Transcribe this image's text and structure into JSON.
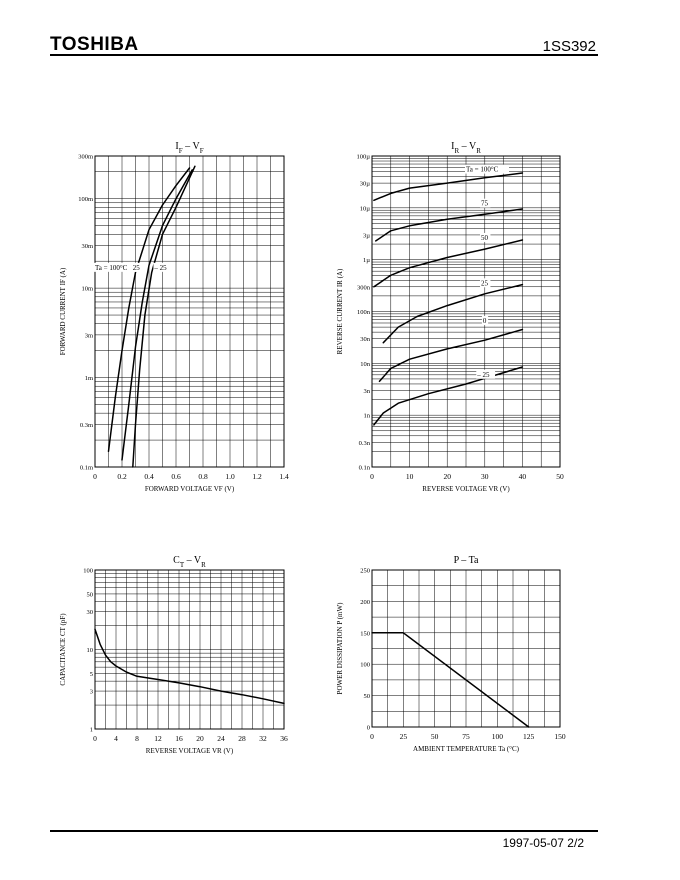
{
  "header": {
    "brand": "TOSHIBA",
    "part": "1SS392"
  },
  "footer": {
    "date_page": "1997-05-07   2/2"
  },
  "chart_data": [
    {
      "id": "if-vf",
      "type": "line",
      "title": "IF – VF",
      "title_main": "I",
      "title_sub1": "F",
      "title_mid": " – V",
      "title_sub2": "F",
      "xlabel": "FORWARD VOLTAGE   VF   (V)",
      "ylabel": "FORWARD CURRENT   IF   (A)",
      "x_scale": "linear",
      "y_scale": "log",
      "xlim": [
        0,
        1.4
      ],
      "ylim": [
        0.0001,
        0.3
      ],
      "x_ticks": [
        0,
        0.2,
        0.4,
        0.6,
        0.8,
        1.0,
        1.2,
        1.4
      ],
      "x_tick_labels": [
        "0",
        "0.2",
        "0.4",
        "0.6",
        "0.8",
        "1.0",
        "1.2",
        "1.4"
      ],
      "y_ticks": [
        0.0001,
        0.0003,
        0.001,
        0.003,
        0.01,
        0.03,
        0.1,
        0.3
      ],
      "y_tick_labels": [
        "0.1m",
        "0.3m",
        "1m",
        "3m",
        "10m",
        "30m",
        "100m",
        "300m"
      ],
      "grid": true,
      "annotations": [
        {
          "text": "Ta = 100°C",
          "x": 0.0,
          "y": 0.016
        },
        {
          "text": "25",
          "x": 0.28,
          "y": 0.016
        },
        {
          "text": "– 25",
          "x": 0.44,
          "y": 0.016
        }
      ],
      "series": [
        {
          "label": "100°C",
          "x": [
            0.1,
            0.15,
            0.2,
            0.25,
            0.3,
            0.4,
            0.5,
            0.6,
            0.7
          ],
          "y": [
            0.00015,
            0.0006,
            0.002,
            0.006,
            0.015,
            0.045,
            0.085,
            0.14,
            0.22
          ]
        },
        {
          "label": "25",
          "x": [
            0.2,
            0.25,
            0.3,
            0.35,
            0.4,
            0.5,
            0.6,
            0.72
          ],
          "y": [
            0.00012,
            0.0005,
            0.0022,
            0.007,
            0.018,
            0.05,
            0.1,
            0.21
          ]
        },
        {
          "label": "-25",
          "x": [
            0.28,
            0.3,
            0.33,
            0.37,
            0.42,
            0.5,
            0.6,
            0.74
          ],
          "y": [
            0.0001,
            0.0003,
            0.0012,
            0.005,
            0.015,
            0.04,
            0.08,
            0.23
          ]
        }
      ]
    },
    {
      "id": "ir-vr",
      "type": "line",
      "title": "IR – VR",
      "title_main": "I",
      "title_sub1": "R",
      "title_mid": " – V",
      "title_sub2": "R",
      "xlabel": "REVERSE VOLTAGE   VR   (V)",
      "ylabel": "REVERSE CURRENT   IR   (A)",
      "x_scale": "linear",
      "y_scale": "log",
      "xlim": [
        0,
        50
      ],
      "ylim": [
        1e-10,
        0.0001
      ],
      "x_ticks": [
        0,
        10,
        20,
        30,
        40,
        50
      ],
      "x_tick_labels": [
        "0",
        "10",
        "20",
        "30",
        "40",
        "50"
      ],
      "y_ticks": [
        1e-10,
        3e-10,
        1e-09,
        3e-09,
        1e-08,
        3e-08,
        1e-07,
        3e-07,
        1e-06,
        3e-06,
        1e-05,
        3e-05,
        0.0001
      ],
      "y_tick_labels": [
        "0.1n",
        "0.3n",
        "1n",
        "3n",
        "10n",
        "30n",
        "100n",
        "300n",
        "1µ",
        "3µ",
        "10µ",
        "30µ",
        "100µ"
      ],
      "grid": true,
      "annotations": [
        {
          "text": "Ta = 100°C",
          "x": 25,
          "y": 5e-05
        },
        {
          "text": "75",
          "x": 29,
          "y": 1.1e-05
        },
        {
          "text": "50",
          "x": 29,
          "y": 2.4e-06
        },
        {
          "text": "25",
          "x": 29,
          "y": 3.2e-07
        },
        {
          "text": "0",
          "x": 29.5,
          "y": 6e-08
        },
        {
          "text": "– 25",
          "x": 28,
          "y": 5.5e-09
        }
      ],
      "series": [
        {
          "label": "100°C",
          "x": [
            0.5,
            5,
            10,
            20,
            30,
            40
          ],
          "y": [
            1.4e-05,
            1.9e-05,
            2.4e-05,
            3e-05,
            3.8e-05,
            4.7e-05
          ]
        },
        {
          "label": "75",
          "x": [
            1,
            5,
            10,
            20,
            30,
            40
          ],
          "y": [
            2.3e-06,
            3.6e-06,
            4.5e-06,
            6e-06,
            7.5e-06,
            9.5e-06
          ]
        },
        {
          "label": "50",
          "x": [
            0.5,
            5,
            10,
            20,
            30,
            40
          ],
          "y": [
            3e-07,
            5e-07,
            7e-07,
            1.1e-06,
            1.6e-06,
            2.4e-06
          ]
        },
        {
          "label": "25",
          "x": [
            3,
            7,
            12,
            20,
            30,
            40
          ],
          "y": [
            2.5e-08,
            5e-08,
            8e-08,
            1.3e-07,
            2.2e-07,
            3.3e-07
          ]
        },
        {
          "label": "0",
          "x": [
            2,
            5,
            10,
            20,
            30,
            40
          ],
          "y": [
            4.5e-09,
            8e-09,
            1.2e-08,
            1.9e-08,
            2.8e-08,
            4.5e-08
          ]
        },
        {
          "label": "-25",
          "x": [
            0.5,
            3,
            7,
            15,
            25,
            40
          ],
          "y": [
            6.5e-10,
            1.1e-09,
            1.7e-09,
            2.6e-09,
            4e-09,
            8.5e-09
          ]
        }
      ]
    },
    {
      "id": "ct-vr",
      "type": "line",
      "title": "CT – VR",
      "title_main": "C",
      "title_sub1": "T",
      "title_mid": " – V",
      "title_sub2": "R",
      "xlabel": "REVERSE VOLTAGE   VR   (V)",
      "ylabel": "CAPACITANCE   CT   (pF)",
      "x_scale": "linear",
      "y_scale": "log",
      "xlim": [
        0,
        36
      ],
      "ylim": [
        1,
        100
      ],
      "x_ticks": [
        0,
        4,
        8,
        12,
        16,
        20,
        24,
        28,
        32,
        36
      ],
      "x_tick_labels": [
        "0",
        "4",
        "8",
        "12",
        "16",
        "20",
        "24",
        "28",
        "32",
        "36"
      ],
      "y_ticks": [
        1,
        3,
        5,
        10,
        30,
        50,
        100
      ],
      "y_tick_labels": [
        "1",
        "3",
        "5",
        "10",
        "30",
        "50",
        "100"
      ],
      "grid": true,
      "series": [
        {
          "label": "CT",
          "x": [
            0,
            1,
            2,
            3,
            4,
            6,
            8,
            12,
            16,
            20,
            24,
            28,
            32,
            36
          ],
          "y": [
            18,
            11.5,
            8.5,
            7,
            6.2,
            5.2,
            4.6,
            4.2,
            3.8,
            3.4,
            3.0,
            2.7,
            2.4,
            2.1
          ]
        }
      ]
    },
    {
      "id": "p-ta",
      "type": "line",
      "title": "P – Ta",
      "title_main": "P – Ta",
      "title_sub1": "",
      "title_mid": "",
      "title_sub2": "",
      "xlabel": "AMBIENT TEMPERATURE   Ta   (°C)",
      "ylabel": "POWER DISSIPATION   P   (mW)",
      "x_scale": "linear",
      "y_scale": "linear",
      "xlim": [
        0,
        150
      ],
      "ylim": [
        0,
        250
      ],
      "x_ticks": [
        0,
        25,
        50,
        75,
        100,
        125,
        150
      ],
      "x_tick_labels": [
        "0",
        "25",
        "50",
        "75",
        "100",
        "125",
        "150"
      ],
      "y_ticks": [
        0,
        50,
        100,
        150,
        200,
        250
      ],
      "y_tick_labels": [
        "0",
        "50",
        "100",
        "150",
        "200",
        "250"
      ],
      "grid": true,
      "series": [
        {
          "label": "P",
          "x": [
            0,
            25,
            125
          ],
          "y": [
            150,
            150,
            0
          ]
        }
      ]
    }
  ]
}
